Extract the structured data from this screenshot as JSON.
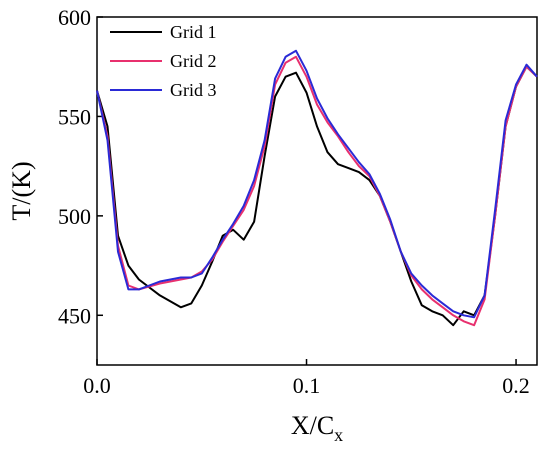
{
  "chart_data": {
    "type": "line",
    "xlabel": "X/C",
    "xlabel_subscript": "x",
    "ylabel": "T/(K)",
    "xlim": [
      0.0,
      0.21
    ],
    "ylim": [
      425,
      600
    ],
    "xticks": [
      0.0,
      0.1,
      0.2
    ],
    "xtick_labels": [
      "0.0",
      "0.1",
      "0.2"
    ],
    "yticks": [
      450,
      500,
      550,
      600
    ],
    "ytick_labels": [
      "450",
      "500",
      "550",
      "600"
    ],
    "grid": false,
    "legend_position": "top-left",
    "series": [
      {
        "name": "Grid 1",
        "color": "#000000",
        "x": [
          0.0,
          0.005,
          0.01,
          0.015,
          0.02,
          0.03,
          0.04,
          0.045,
          0.05,
          0.055,
          0.06,
          0.065,
          0.07,
          0.075,
          0.08,
          0.085,
          0.09,
          0.095,
          0.1,
          0.105,
          0.11,
          0.115,
          0.12,
          0.125,
          0.13,
          0.135,
          0.14,
          0.145,
          0.15,
          0.155,
          0.16,
          0.165,
          0.17,
          0.175,
          0.18,
          0.185,
          0.19,
          0.195,
          0.2,
          0.205,
          0.21
        ],
        "y": [
          563,
          545,
          490,
          475,
          468,
          460,
          454,
          456,
          465,
          477,
          490,
          493,
          488,
          497,
          530,
          560,
          570,
          572,
          562,
          545,
          532,
          526,
          524,
          522,
          518,
          510,
          497,
          482,
          467,
          455,
          452,
          450,
          445,
          452,
          450,
          460,
          500,
          545,
          565,
          575,
          570
        ]
      },
      {
        "name": "Grid 2",
        "color": "#e8306e",
        "x": [
          0.0,
          0.005,
          0.01,
          0.015,
          0.02,
          0.03,
          0.04,
          0.045,
          0.05,
          0.055,
          0.06,
          0.065,
          0.07,
          0.075,
          0.08,
          0.085,
          0.09,
          0.095,
          0.1,
          0.105,
          0.11,
          0.115,
          0.12,
          0.125,
          0.13,
          0.135,
          0.14,
          0.145,
          0.15,
          0.155,
          0.16,
          0.165,
          0.17,
          0.175,
          0.18,
          0.185,
          0.19,
          0.195,
          0.2,
          0.205,
          0.21
        ],
        "y": [
          563,
          540,
          485,
          465,
          463,
          466,
          468,
          469,
          472,
          478,
          487,
          495,
          503,
          515,
          535,
          566,
          577,
          580,
          570,
          556,
          547,
          540,
          532,
          525,
          520,
          510,
          497,
          482,
          470,
          463,
          458,
          454,
          450,
          447,
          445,
          458,
          500,
          545,
          565,
          575,
          570
        ]
      },
      {
        "name": "Grid 3",
        "color": "#2a2ad6",
        "x": [
          0.0,
          0.005,
          0.01,
          0.015,
          0.02,
          0.03,
          0.04,
          0.045,
          0.05,
          0.055,
          0.06,
          0.065,
          0.07,
          0.075,
          0.08,
          0.085,
          0.09,
          0.095,
          0.1,
          0.105,
          0.11,
          0.115,
          0.12,
          0.125,
          0.13,
          0.135,
          0.14,
          0.145,
          0.15,
          0.155,
          0.16,
          0.165,
          0.17,
          0.175,
          0.18,
          0.185,
          0.19,
          0.195,
          0.2,
          0.205,
          0.21
        ],
        "y": [
          563,
          538,
          482,
          463,
          463,
          467,
          469,
          469,
          471,
          479,
          488,
          496,
          505,
          518,
          538,
          569,
          580,
          583,
          573,
          559,
          549,
          541,
          534,
          527,
          521,
          511,
          498,
          482,
          471,
          465,
          460,
          456,
          452,
          450,
          449,
          460,
          503,
          548,
          566,
          576,
          570
        ]
      }
    ]
  }
}
